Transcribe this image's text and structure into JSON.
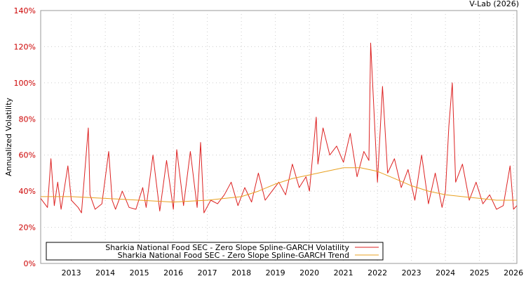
{
  "chart_data": {
    "type": "line",
    "credit": "V-Lab (2026)",
    "ylabel": "Annualized Volatility",
    "xlabel": "",
    "ylim": [
      0,
      140
    ],
    "y_ticks": [
      0,
      20,
      40,
      60,
      80,
      100,
      120,
      140
    ],
    "y_tick_labels": [
      "0%",
      "20%",
      "40%",
      "60%",
      "80%",
      "100%",
      "120%",
      "140%"
    ],
    "xlim": [
      2012.1,
      2026.1
    ],
    "x_ticks": [
      2013,
      2014,
      2015,
      2016,
      2017,
      2018,
      2019,
      2020,
      2021,
      2022,
      2023,
      2024,
      2025,
      2026
    ],
    "x_tick_labels": [
      "2013",
      "2014",
      "2015",
      "2016",
      "2017",
      "2018",
      "2019",
      "2020",
      "2021",
      "2022",
      "2023",
      "2024",
      "2025",
      "2026"
    ],
    "grid": true,
    "legend_position": "bottom-left",
    "series": [
      {
        "name": "Sharkia National Food SEC - Zero Slope Spline-GARCH Volatility",
        "color": "#dd2222",
        "x": [
          2012.1,
          2012.3,
          2012.4,
          2012.5,
          2012.6,
          2012.7,
          2012.9,
          2013.0,
          2013.2,
          2013.3,
          2013.5,
          2013.55,
          2013.7,
          2013.9,
          2014.1,
          2014.2,
          2014.3,
          2014.5,
          2014.7,
          2014.9,
          2015.1,
          2015.2,
          2015.4,
          2015.6,
          2015.8,
          2016.0,
          2016.1,
          2016.3,
          2016.5,
          2016.7,
          2016.8,
          2016.9,
          2017.1,
          2017.3,
          2017.5,
          2017.7,
          2017.9,
          2018.1,
          2018.3,
          2018.5,
          2018.7,
          2018.9,
          2019.1,
          2019.3,
          2019.5,
          2019.7,
          2019.9,
          2020.0,
          2020.2,
          2020.25,
          2020.4,
          2020.6,
          2020.8,
          2021.0,
          2021.2,
          2021.4,
          2021.6,
          2021.75,
          2021.8,
          2022.0,
          2022.15,
          2022.3,
          2022.5,
          2022.7,
          2022.9,
          2023.1,
          2023.3,
          2023.5,
          2023.7,
          2023.9,
          2024.0,
          2024.1,
          2024.2,
          2024.3,
          2024.5,
          2024.7,
          2024.9,
          2025.1,
          2025.3,
          2025.5,
          2025.7,
          2025.9,
          2026.0,
          2026.1
        ],
        "values": [
          36,
          31,
          58,
          32,
          45,
          30,
          54,
          35,
          31,
          28,
          75,
          38,
          30,
          33,
          62,
          35,
          30,
          40,
          31,
          30,
          42,
          31,
          60,
          29,
          57,
          30,
          63,
          32,
          62,
          31,
          67,
          28,
          35,
          33,
          38,
          45,
          32,
          42,
          34,
          50,
          35,
          40,
          45,
          38,
          55,
          42,
          48,
          40,
          81,
          55,
          75,
          60,
          65,
          56,
          72,
          48,
          62,
          57,
          122,
          45,
          98,
          50,
          58,
          42,
          52,
          35,
          60,
          33,
          50,
          31,
          40,
          76,
          100,
          45,
          55,
          35,
          45,
          33,
          38,
          30,
          32,
          54,
          30,
          32
        ]
      },
      {
        "name": "Sharkia National Food SEC - Zero Slope Spline-GARCH Trend",
        "color": "#e8a020",
        "x": [
          2012.1,
          2013.0,
          2014.0,
          2015.0,
          2016.0,
          2017.0,
          2018.0,
          2018.5,
          2019.0,
          2019.5,
          2020.0,
          2020.5,
          2021.0,
          2021.5,
          2022.0,
          2022.5,
          2023.0,
          2023.5,
          2024.0,
          2024.5,
          2025.0,
          2025.5,
          2026.1
        ],
        "values": [
          37,
          37,
          36,
          35,
          34,
          35,
          37,
          40,
          44,
          47,
          49,
          51,
          53,
          53,
          51,
          47,
          43,
          40,
          38,
          37,
          36,
          35,
          35
        ]
      }
    ]
  }
}
